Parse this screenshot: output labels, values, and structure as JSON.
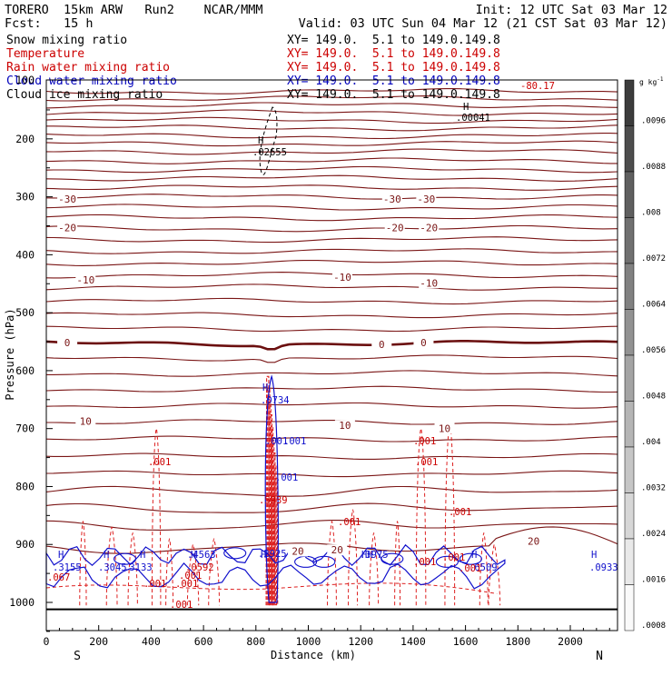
{
  "header": {
    "line1_left": "TORERO  15km ARW   Run2    NCAR/MMM",
    "line1_right": "Init: 12 UTC Sat 03 Mar 12",
    "line2_left": "Fcst:   15 h",
    "line2_right": "Valid: 03 UTC Sun 04 Mar 12 (21 CST Sat 03 Mar 12)"
  },
  "legend": [
    {
      "label": "Snow mixing ratio",
      "xy": "XY= 149.0.  5.1 to 149.0.149.8",
      "color": "#000000"
    },
    {
      "label": "Temperature",
      "xy": "XY= 149.0.  5.1 to 149.0.149.8",
      "color": "#cc0000"
    },
    {
      "label": "Rain water mixing ratio",
      "xy": "XY= 149.0.  5.1 to 149.0.149.8",
      "color": "#cc0000"
    },
    {
      "label": "Cloud water mixing ratio",
      "xy": "XY= 149.0.  5.1 to 149.0.149.8",
      "color": "#0000bb"
    },
    {
      "label": "Cloud ice mixing ratio",
      "xy": "XY= 149.0.  5.1 to 149.0.149.8",
      "color": "#000000"
    }
  ],
  "colors": {
    "temperature": "#7a1515",
    "temperature_zero": "#6b0f0f",
    "rain": "#dd2020",
    "cloud_water": "#1010cc",
    "ice": "#000000",
    "label_red": "#cc0000"
  },
  "colorbar": {
    "unit": "g kg",
    "unit_exp": "-1",
    "labels": [
      ".0096",
      ".0088",
      ".008",
      ".0072",
      ".0064",
      ".0056",
      ".0048",
      ".004",
      ".0032",
      ".0024",
      ".0016",
      ".0008"
    ]
  },
  "extrema_labels": [
    {
      "text": "H",
      "color": "#000000"
    },
    {
      "text": ".00041",
      "color": "#000000"
    },
    {
      "text": "H",
      "color": "#000000"
    },
    {
      "text": ".02655",
      "color": "#000000"
    },
    {
      "text": "-80.17",
      "color": "#cc0000"
    },
    {
      "text": "H",
      "color": "#1010cc"
    },
    {
      "text": ".0734",
      "color": "#1010cc"
    },
    {
      "text": ".001",
      "color": "#1010cc"
    },
    {
      "text": ".001",
      "color": "#1010cc"
    },
    {
      "text": ".001",
      "color": "#1010cc"
    },
    {
      "text": ".5939",
      "color": "#cc0000"
    },
    {
      "text": "H",
      "color": "#1010cc"
    },
    {
      "text": ".3155",
      "color": "#1010cc"
    },
    {
      "text": "H",
      "color": "#1010cc"
    },
    {
      "text": ".3045",
      "color": "#1010cc"
    },
    {
      "text": "H",
      "color": "#1010cc"
    },
    {
      "text": ".3133",
      "color": "#1010cc"
    },
    {
      "text": "H",
      "color": "#1010cc"
    },
    {
      "text": ".4563",
      "color": "#1010cc"
    },
    {
      "text": ".0592",
      "color": "#cc0000"
    },
    {
      "text": "H",
      "color": "#1010cc"
    },
    {
      "text": ".2925",
      "color": "#1010cc"
    },
    {
      "text": "HH",
      "color": "#1010cc"
    },
    {
      "text": ".3975",
      "color": "#1010cc"
    },
    {
      "text": "H",
      "color": "#1010cc"
    },
    {
      "text": ".6509",
      "color": "#1010cc"
    },
    {
      "text": "H",
      "color": "#1010cc"
    },
    {
      "text": ".0933",
      "color": "#1010cc"
    },
    {
      "text": ".067",
      "color": "#cc0000"
    },
    {
      "text": ".001",
      "color": "#cc0000"
    },
    {
      "text": ".001",
      "color": "#cc0000"
    },
    {
      "text": ".001",
      "color": "#cc0000"
    },
    {
      "text": ".001",
      "color": "#cc0000"
    },
    {
      "text": ".001",
      "color": "#cc0000"
    },
    {
      "text": ".001",
      "color": "#cc0000"
    },
    {
      "text": ".001",
      "color": "#cc0000"
    },
    {
      "text": ".001",
      "color": "#cc0000"
    },
    {
      "text": ".001",
      "color": "#cc0000"
    },
    {
      "text": ".001",
      "color": "#cc0000"
    },
    {
      "text": ".001",
      "color": "#cc0000"
    },
    {
      "text": ".001",
      "color": "#cc0000"
    }
  ],
  "chart_data": {
    "type": "cross-section contour",
    "xlabel": "Distance (km)",
    "ylabel": "Pressure (hPa)",
    "x_ticks": [
      0,
      200,
      400,
      600,
      800,
      1000,
      1200,
      1400,
      1600,
      1800,
      2000
    ],
    "y_ticks": [
      200,
      300,
      400,
      500,
      600,
      700,
      800,
      900,
      1000
    ],
    "y_top_tick_label": "100",
    "xlim": [
      0,
      2180
    ],
    "ylim": [
      1050,
      100
    ],
    "direction_labels": {
      "left": "S",
      "right": "N"
    },
    "isotherm_labels": [
      {
        "text": "-30",
        "x": 80,
        "p": 305
      },
      {
        "text": "-30",
        "x": 1320,
        "p": 305
      },
      {
        "text": "-30",
        "x": 1450,
        "p": 305
      },
      {
        "text": "-20",
        "x": 80,
        "p": 355
      },
      {
        "text": "-20",
        "x": 1330,
        "p": 355
      },
      {
        "text": "-20",
        "x": 1460,
        "p": 355
      },
      {
        "text": "-10",
        "x": 150,
        "p": 445
      },
      {
        "text": "-10",
        "x": 1130,
        "p": 440
      },
      {
        "text": "-10",
        "x": 1460,
        "p": 450
      },
      {
        "text": "0",
        "x": 80,
        "p": 553
      },
      {
        "text": "0",
        "x": 1280,
        "p": 556
      },
      {
        "text": "0",
        "x": 1440,
        "p": 553
      },
      {
        "text": "10",
        "x": 150,
        "p": 689
      },
      {
        "text": "10",
        "x": 1140,
        "p": 696
      },
      {
        "text": "10",
        "x": 1520,
        "p": 701
      },
      {
        "text": "20",
        "x": 1860,
        "p": 896
      },
      {
        "text": "20",
        "x": 960,
        "p": 913
      },
      {
        "text": "20",
        "x": 1110,
        "p": 911
      }
    ]
  }
}
